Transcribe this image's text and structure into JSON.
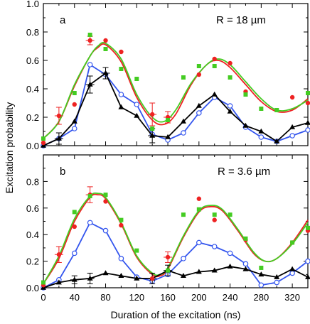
{
  "chart_data": [
    {
      "type": "scatter",
      "panel": "a",
      "annotation": "R = 18 µm",
      "xlim": [
        0,
        340
      ],
      "ylim": [
        0,
        1.0
      ],
      "x_ticks": [
        0,
        40,
        80,
        120,
        160,
        200,
        240,
        280,
        320
      ],
      "y_ticks": [
        0.0,
        0.2,
        0.4,
        0.6,
        0.8,
        1.0
      ],
      "y_tick_labels": [
        "0.0",
        "0.2",
        "0.4",
        "0.6",
        "0.8",
        "1.0"
      ],
      "grid": false,
      "ylabel": "Excitation probability",
      "series": [
        {
          "kind": "points",
          "color": "#ee2222",
          "marker": "dot",
          "points": [
            [
              0,
              0.02
            ],
            [
              20,
              0.21
            ],
            [
              40,
              0.29
            ],
            [
              60,
              0.74
            ],
            [
              80,
              0.74
            ],
            [
              100,
              0.66
            ],
            [
              140,
              0.22
            ],
            [
              160,
              0.2
            ],
            [
              200,
              0.5
            ],
            [
              220,
              0.61
            ],
            [
              240,
              0.58
            ],
            [
              260,
              0.38
            ],
            [
              320,
              0.34
            ],
            [
              340,
              0.3
            ]
          ],
          "error_bars": [
            [
              20,
              0.21,
              0.06
            ],
            [
              60,
              0.74,
              0.03
            ],
            [
              140,
              0.22,
              0.08
            ],
            [
              160,
              0.2,
              0.04
            ]
          ]
        },
        {
          "kind": "points",
          "color": "#44cc22",
          "marker": "square",
          "points": [
            [
              0,
              0.05
            ],
            [
              40,
              0.37
            ],
            [
              60,
              0.78
            ],
            [
              80,
              0.68
            ],
            [
              100,
              0.54
            ],
            [
              120,
              0.47
            ],
            [
              140,
              0.12
            ],
            [
              160,
              0.18
            ],
            [
              180,
              0.48
            ],
            [
              200,
              0.56
            ],
            [
              220,
              0.56
            ],
            [
              240,
              0.48
            ],
            [
              260,
              0.36
            ],
            [
              280,
              0.26
            ],
            [
              300,
              0.25
            ],
            [
              340,
              0.37
            ]
          ]
        },
        {
          "kind": "curve",
          "color": "#ee2222",
          "points": [
            [
              0,
              0.05
            ],
            [
              20,
              0.17
            ],
            [
              40,
              0.42
            ],
            [
              60,
              0.63
            ],
            [
              70,
              0.69
            ],
            [
              80,
              0.71
            ],
            [
              100,
              0.59
            ],
            [
              120,
              0.34
            ],
            [
              140,
              0.18
            ],
            [
              155,
              0.15
            ],
            [
              170,
              0.22
            ],
            [
              190,
              0.43
            ],
            [
              210,
              0.57
            ],
            [
              225,
              0.6
            ],
            [
              240,
              0.55
            ],
            [
              260,
              0.43
            ],
            [
              280,
              0.31
            ],
            [
              300,
              0.24
            ],
            [
              320,
              0.25
            ],
            [
              340,
              0.33
            ]
          ]
        },
        {
          "kind": "curve",
          "color": "#44cc22",
          "points": [
            [
              0,
              0.05
            ],
            [
              20,
              0.17
            ],
            [
              40,
              0.43
            ],
            [
              60,
              0.63
            ],
            [
              70,
              0.7
            ],
            [
              80,
              0.72
            ],
            [
              100,
              0.61
            ],
            [
              120,
              0.36
            ],
            [
              140,
              0.2
            ],
            [
              155,
              0.17
            ],
            [
              170,
              0.25
            ],
            [
              190,
              0.44
            ],
            [
              210,
              0.57
            ],
            [
              225,
              0.61
            ],
            [
              240,
              0.57
            ],
            [
              260,
              0.45
            ],
            [
              280,
              0.33
            ],
            [
              300,
              0.25
            ],
            [
              320,
              0.26
            ],
            [
              340,
              0.32
            ]
          ]
        },
        {
          "kind": "line",
          "color": "#3355ee",
          "marker": "open-circle",
          "points": [
            [
              0,
              0.0
            ],
            [
              20,
              0.05
            ],
            [
              40,
              0.12
            ],
            [
              60,
              0.57
            ],
            [
              80,
              0.5
            ],
            [
              100,
              0.36
            ],
            [
              120,
              0.29
            ],
            [
              140,
              0.08
            ],
            [
              160,
              0.04
            ],
            [
              180,
              0.09
            ],
            [
              200,
              0.23
            ],
            [
              220,
              0.34
            ],
            [
              240,
              0.28
            ],
            [
              260,
              0.13
            ],
            [
              280,
              0.06
            ],
            [
              300,
              0.03
            ],
            [
              320,
              0.07
            ],
            [
              340,
              0.11
            ]
          ]
        },
        {
          "kind": "line",
          "color": "#000000",
          "marker": "triangle",
          "points": [
            [
              0,
              0.0
            ],
            [
              20,
              0.05
            ],
            [
              40,
              0.17
            ],
            [
              60,
              0.43
            ],
            [
              80,
              0.51
            ],
            [
              100,
              0.27
            ],
            [
              120,
              0.21
            ],
            [
              140,
              0.07
            ],
            [
              160,
              0.06
            ],
            [
              180,
              0.17
            ],
            [
              200,
              0.28
            ],
            [
              220,
              0.36
            ],
            [
              240,
              0.24
            ],
            [
              260,
              0.14
            ],
            [
              280,
              0.1
            ],
            [
              300,
              0.03
            ],
            [
              320,
              0.13
            ],
            [
              340,
              0.16
            ]
          ],
          "error_bars": [
            [
              20,
              0.05,
              0.04
            ],
            [
              60,
              0.43,
              0.06
            ],
            [
              80,
              0.51,
              0.04
            ],
            [
              140,
              0.07,
              0.05
            ]
          ]
        }
      ]
    },
    {
      "type": "scatter",
      "panel": "b",
      "annotation": "R = 3.6 µm",
      "xlabel": "Duration of the excitation (ns)",
      "xlim": [
        0,
        340
      ],
      "ylim": [
        0,
        1.0
      ],
      "x_ticks": [
        0,
        40,
        80,
        120,
        160,
        200,
        240,
        280,
        320
      ],
      "y_ticks": [
        0.0,
        0.2,
        0.4,
        0.6,
        0.8
      ],
      "y_tick_labels": [
        "0.0",
        "0.2",
        "0.4",
        "0.6",
        "0.8"
      ],
      "grid": false,
      "series": [
        {
          "kind": "points",
          "color": "#ee2222",
          "marker": "dot",
          "points": [
            [
              0,
              0.02
            ],
            [
              20,
              0.25
            ],
            [
              40,
              0.46
            ],
            [
              60,
              0.7
            ],
            [
              80,
              0.65
            ],
            [
              100,
              0.47
            ],
            [
              140,
              0.07
            ],
            [
              160,
              0.23
            ],
            [
              200,
              0.67
            ],
            [
              220,
              0.51
            ],
            [
              260,
              0.36
            ],
            [
              320,
              0.34
            ],
            [
              340,
              0.43
            ]
          ],
          "error_bars": [
            [
              20,
              0.25,
              0.06
            ],
            [
              60,
              0.7,
              0.06
            ],
            [
              160,
              0.23,
              0.04
            ]
          ]
        },
        {
          "kind": "points",
          "color": "#44cc22",
          "marker": "square",
          "points": [
            [
              0,
              0.04
            ],
            [
              40,
              0.57
            ],
            [
              60,
              0.69
            ],
            [
              80,
              0.7
            ],
            [
              100,
              0.51
            ],
            [
              120,
              0.28
            ],
            [
              160,
              0.13
            ],
            [
              180,
              0.55
            ],
            [
              200,
              0.59
            ],
            [
              220,
              0.55
            ],
            [
              240,
              0.55
            ],
            [
              260,
              0.37
            ],
            [
              280,
              0.15
            ],
            [
              320,
              0.34
            ],
            [
              340,
              0.45
            ]
          ]
        },
        {
          "kind": "curve",
          "color": "#ee2222",
          "points": [
            [
              0,
              0.03
            ],
            [
              20,
              0.22
            ],
            [
              40,
              0.5
            ],
            [
              60,
              0.68
            ],
            [
              70,
              0.7
            ],
            [
              80,
              0.67
            ],
            [
              100,
              0.48
            ],
            [
              120,
              0.23
            ],
            [
              140,
              0.1
            ],
            [
              150,
              0.09
            ],
            [
              160,
              0.14
            ],
            [
              180,
              0.38
            ],
            [
              200,
              0.57
            ],
            [
              215,
              0.61
            ],
            [
              230,
              0.58
            ],
            [
              250,
              0.43
            ],
            [
              270,
              0.26
            ],
            [
              285,
              0.2
            ],
            [
              300,
              0.22
            ],
            [
              320,
              0.34
            ],
            [
              340,
              0.51
            ]
          ]
        },
        {
          "kind": "curve",
          "color": "#44cc22",
          "points": [
            [
              0,
              0.03
            ],
            [
              20,
              0.24
            ],
            [
              40,
              0.52
            ],
            [
              60,
              0.69
            ],
            [
              70,
              0.71
            ],
            [
              80,
              0.68
            ],
            [
              100,
              0.49
            ],
            [
              120,
              0.24
            ],
            [
              140,
              0.11
            ],
            [
              150,
              0.1
            ],
            [
              160,
              0.15
            ],
            [
              180,
              0.39
            ],
            [
              200,
              0.58
            ],
            [
              215,
              0.62
            ],
            [
              230,
              0.59
            ],
            [
              250,
              0.44
            ],
            [
              270,
              0.27
            ],
            [
              285,
              0.2
            ],
            [
              300,
              0.22
            ],
            [
              320,
              0.33
            ],
            [
              340,
              0.49
            ]
          ]
        },
        {
          "kind": "line",
          "color": "#3355ee",
          "marker": "open-circle",
          "points": [
            [
              0,
              0.0
            ],
            [
              20,
              0.06
            ],
            [
              40,
              0.26
            ],
            [
              60,
              0.49
            ],
            [
              80,
              0.43
            ],
            [
              100,
              0.22
            ],
            [
              120,
              0.08
            ],
            [
              140,
              0.05
            ],
            [
              160,
              0.1
            ],
            [
              180,
              0.22
            ],
            [
              200,
              0.34
            ],
            [
              220,
              0.31
            ],
            [
              240,
              0.26
            ],
            [
              260,
              0.18
            ],
            [
              280,
              0.02
            ],
            [
              300,
              0.04
            ],
            [
              320,
              0.11
            ],
            [
              340,
              0.2
            ]
          ]
        },
        {
          "kind": "line",
          "color": "#000000",
          "marker": "triangle",
          "points": [
            [
              0,
              0.0
            ],
            [
              20,
              0.04
            ],
            [
              40,
              0.06
            ],
            [
              60,
              0.07
            ],
            [
              80,
              0.11
            ],
            [
              100,
              0.09
            ],
            [
              120,
              0.07
            ],
            [
              140,
              0.07
            ],
            [
              160,
              0.13
            ],
            [
              180,
              0.09
            ],
            [
              200,
              0.12
            ],
            [
              220,
              0.13
            ],
            [
              240,
              0.16
            ],
            [
              260,
              0.14
            ],
            [
              280,
              0.1
            ],
            [
              300,
              0.08
            ],
            [
              320,
              0.14
            ],
            [
              340,
              0.08
            ]
          ],
          "error_bars": [
            [
              40,
              0.06,
              0.03
            ],
            [
              60,
              0.07,
              0.04
            ],
            [
              140,
              0.07,
              0.04
            ],
            [
              160,
              0.13,
              0.04
            ]
          ]
        }
      ]
    }
  ]
}
